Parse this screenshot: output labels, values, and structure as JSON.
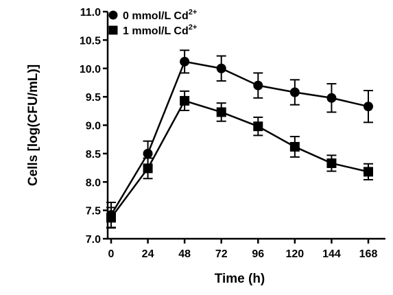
{
  "chart_data": {
    "type": "line",
    "title": "",
    "xlabel": "Time (h)",
    "ylabel": "Cells [log(CFU/mL)]",
    "x": [
      0,
      24,
      48,
      72,
      96,
      120,
      144,
      168
    ],
    "x_tick_labels": [
      "0",
      "24",
      "48",
      "72",
      "96",
      "120",
      "144",
      "168"
    ],
    "ylim": [
      7.0,
      11.0
    ],
    "y_ticks": [
      7.0,
      7.5,
      8.0,
      8.5,
      9.0,
      9.5,
      10.0,
      10.5,
      11.0
    ],
    "y_tick_labels": [
      "7.0",
      "7.5",
      "8.0",
      "8.5",
      "9.0",
      "9.5",
      "10.0",
      "10.5",
      "11.0"
    ],
    "grid": false,
    "legend_position": "top-left",
    "series": [
      {
        "name": "0 mmol/L Cd",
        "name_superscript": "2+",
        "marker": "circle",
        "color": "#000000",
        "values": [
          7.42,
          8.5,
          10.12,
          10.0,
          9.7,
          9.58,
          9.48,
          9.33
        ],
        "errors": [
          0.22,
          0.22,
          0.2,
          0.22,
          0.22,
          0.22,
          0.25,
          0.28
        ]
      },
      {
        "name": "1 mmol/L Cd",
        "name_superscript": "2+",
        "marker": "square",
        "color": "#000000",
        "values": [
          7.37,
          8.24,
          9.43,
          9.23,
          8.98,
          8.62,
          8.33,
          8.18
        ],
        "errors": [
          0.18,
          0.18,
          0.17,
          0.16,
          0.16,
          0.18,
          0.14,
          0.14
        ]
      }
    ]
  }
}
